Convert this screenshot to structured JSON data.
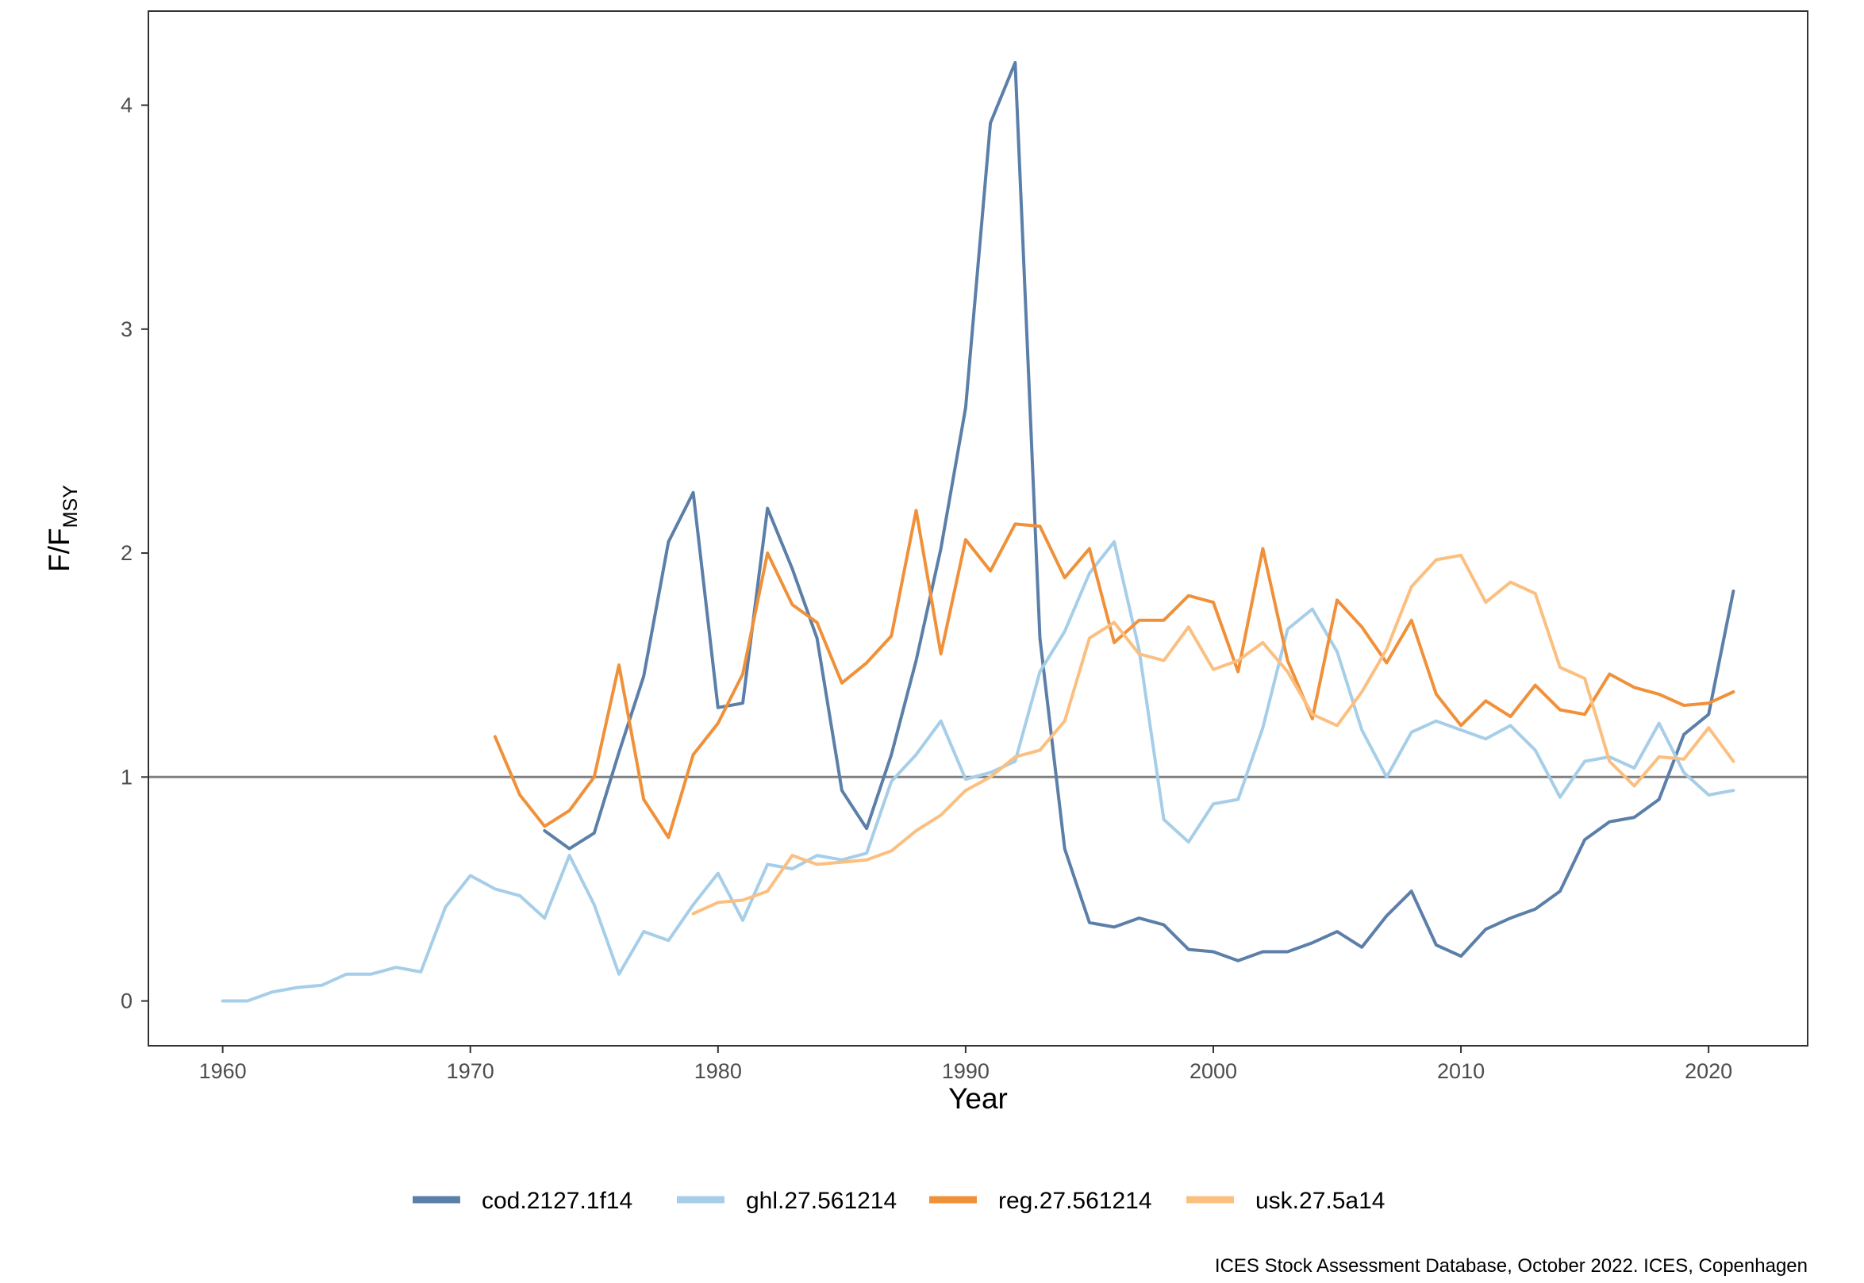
{
  "chart_data": {
    "type": "line",
    "xlabel": "Year",
    "ylabel": "F/F",
    "ylabel_subscript": "MSY",
    "xlim": [
      1957,
      2024
    ],
    "ylim": [
      -0.2,
      4.42
    ],
    "x_ticks": [
      1960,
      1970,
      1980,
      1990,
      2000,
      2010,
      2020
    ],
    "y_ticks": [
      0,
      1,
      2,
      3,
      4
    ],
    "reference_line": {
      "y": 1,
      "color": "#808080"
    },
    "grid": false,
    "legend_position": "bottom",
    "caption": "ICES Stock Assessment Database, October 2022. ICES, Copenhagen",
    "series": [
      {
        "name": "cod.2127.1f14",
        "color": "#5b7fa8",
        "x": [
          1973,
          1974,
          1975,
          1976,
          1977,
          1978,
          1979,
          1980,
          1981,
          1982,
          1983,
          1984,
          1985,
          1986,
          1987,
          1988,
          1989,
          1990,
          1991,
          1992,
          1993,
          1994,
          1995,
          1996,
          1997,
          1998,
          1999,
          2000,
          2001,
          2002,
          2003,
          2004,
          2005,
          2006,
          2007,
          2008,
          2009,
          2010,
          2011,
          2012,
          2013,
          2014,
          2015,
          2016,
          2017,
          2018,
          2019,
          2020,
          2021
        ],
        "values": [
          0.76,
          0.68,
          0.75,
          1.11,
          1.45,
          2.05,
          2.27,
          1.31,
          1.33,
          2.2,
          1.93,
          1.62,
          0.94,
          0.77,
          1.1,
          1.52,
          2.02,
          2.65,
          3.92,
          4.19,
          1.62,
          0.68,
          0.35,
          0.33,
          0.37,
          0.34,
          0.23,
          0.22,
          0.18,
          0.22,
          0.22,
          0.26,
          0.31,
          0.24,
          0.38,
          0.49,
          0.25,
          0.2,
          0.32,
          0.37,
          0.41,
          0.49,
          0.72,
          0.8,
          0.82,
          0.9,
          1.19,
          1.28,
          1.83
        ]
      },
      {
        "name": "ghl.27.561214",
        "color": "#a6cee8",
        "x": [
          1960,
          1961,
          1962,
          1963,
          1964,
          1965,
          1966,
          1967,
          1968,
          1969,
          1970,
          1971,
          1972,
          1973,
          1974,
          1975,
          1976,
          1977,
          1978,
          1979,
          1980,
          1981,
          1982,
          1983,
          1984,
          1985,
          1986,
          1987,
          1988,
          1989,
          1990,
          1991,
          1992,
          1993,
          1994,
          1995,
          1996,
          1997,
          1998,
          1999,
          2000,
          2001,
          2002,
          2003,
          2004,
          2005,
          2006,
          2007,
          2008,
          2009,
          2010,
          2011,
          2012,
          2013,
          2014,
          2015,
          2016,
          2017,
          2018,
          2019,
          2020,
          2021
        ],
        "values": [
          0.0,
          0.0,
          0.04,
          0.06,
          0.07,
          0.12,
          0.12,
          0.15,
          0.13,
          0.42,
          0.56,
          0.5,
          0.47,
          0.37,
          0.65,
          0.43,
          0.12,
          0.31,
          0.27,
          0.43,
          0.57,
          0.36,
          0.61,
          0.59,
          0.65,
          0.63,
          0.66,
          0.98,
          1.1,
          1.25,
          0.99,
          1.02,
          1.07,
          1.47,
          1.65,
          1.91,
          2.05,
          1.57,
          0.81,
          0.71,
          0.88,
          0.9,
          1.22,
          1.66,
          1.75,
          1.56,
          1.21,
          1.0,
          1.2,
          1.25,
          1.21,
          1.17,
          1.23,
          1.12,
          0.91,
          1.07,
          1.09,
          1.04,
          1.24,
          1.02,
          0.92,
          0.94
        ]
      },
      {
        "name": "reg.27.561214",
        "color": "#f0913a",
        "x": [
          1971,
          1972,
          1973,
          1974,
          1975,
          1976,
          1977,
          1978,
          1979,
          1980,
          1981,
          1982,
          1983,
          1984,
          1985,
          1986,
          1987,
          1988,
          1989,
          1990,
          1991,
          1992,
          1993,
          1994,
          1995,
          1996,
          1997,
          1998,
          1999,
          2000,
          2001,
          2002,
          2003,
          2004,
          2005,
          2006,
          2007,
          2008,
          2009,
          2010,
          2011,
          2012,
          2013,
          2014,
          2015,
          2016,
          2017,
          2018,
          2019,
          2020,
          2021
        ],
        "values": [
          1.18,
          0.92,
          0.78,
          0.85,
          1.0,
          1.5,
          0.9,
          0.73,
          1.1,
          1.24,
          1.46,
          2.0,
          1.77,
          1.69,
          1.42,
          1.51,
          1.63,
          2.19,
          1.55,
          2.06,
          1.92,
          2.13,
          2.12,
          1.89,
          2.02,
          1.6,
          1.7,
          1.7,
          1.81,
          1.78,
          1.47,
          2.02,
          1.52,
          1.26,
          1.79,
          1.67,
          1.51,
          1.7,
          1.37,
          1.23,
          1.34,
          1.27,
          1.41,
          1.3,
          1.28,
          1.46,
          1.4,
          1.37,
          1.32,
          1.33,
          1.38
        ]
      },
      {
        "name": "usk.27.5a14",
        "color": "#fbbf80",
        "x": [
          1979,
          1980,
          1981,
          1982,
          1983,
          1984,
          1985,
          1986,
          1987,
          1988,
          1989,
          1990,
          1991,
          1992,
          1993,
          1994,
          1995,
          1996,
          1997,
          1998,
          1999,
          2000,
          2001,
          2002,
          2003,
          2004,
          2005,
          2006,
          2007,
          2008,
          2009,
          2010,
          2011,
          2012,
          2013,
          2014,
          2015,
          2016,
          2017,
          2018,
          2019,
          2020,
          2021
        ],
        "values": [
          0.39,
          0.44,
          0.45,
          0.49,
          0.65,
          0.61,
          0.62,
          0.63,
          0.67,
          0.76,
          0.83,
          0.94,
          1.0,
          1.09,
          1.12,
          1.25,
          1.62,
          1.69,
          1.55,
          1.52,
          1.67,
          1.48,
          1.52,
          1.6,
          1.47,
          1.28,
          1.23,
          1.38,
          1.57,
          1.85,
          1.97,
          1.99,
          1.78,
          1.87,
          1.82,
          1.49,
          1.44,
          1.07,
          0.96,
          1.09,
          1.08,
          1.22,
          1.07
        ]
      }
    ]
  }
}
